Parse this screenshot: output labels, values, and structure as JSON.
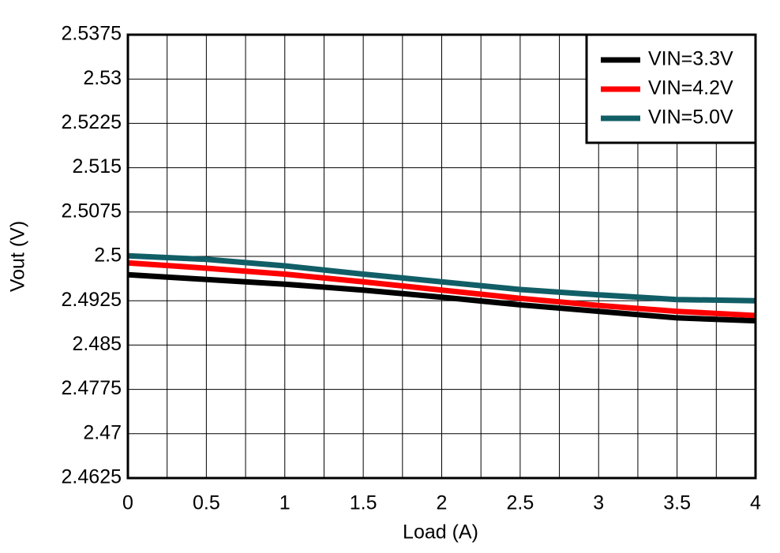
{
  "chart_data": {
    "type": "line",
    "x_label": "Load (A)",
    "y_label": "Vout (V)",
    "x": [
      0,
      0.5,
      1,
      1.5,
      2,
      2.5,
      3,
      3.5,
      4
    ],
    "series": [
      {
        "name": "VIN=3.3V",
        "color": "#000000",
        "values": [
          2.4969,
          2.4961,
          2.4953,
          2.4943,
          2.4931,
          2.4918,
          2.4907,
          2.4896,
          2.4891
        ]
      },
      {
        "name": "VIN=4.2V",
        "color": "#ff0000",
        "values": [
          2.4989,
          2.498,
          2.497,
          2.4957,
          2.4943,
          2.4929,
          2.4917,
          2.4907,
          2.49
        ]
      },
      {
        "name": "VIN=5.0V",
        "color": "#115e67",
        "values": [
          2.5001,
          2.4995,
          2.4984,
          2.497,
          2.4957,
          2.4944,
          2.4935,
          2.4927,
          2.4925
        ]
      }
    ],
    "xlim": [
      0,
      4
    ],
    "xticks": [
      0,
      0.5,
      1,
      1.5,
      2,
      2.5,
      3,
      3.5,
      4
    ],
    "xminorticks": [
      0.25,
      0.75,
      1.25,
      1.75,
      2.25,
      2.75,
      3.25,
      3.75
    ],
    "ylim": [
      2.4625,
      2.5375
    ],
    "yticks": [
      2.4625,
      2.47,
      2.4775,
      2.485,
      2.4925,
      2.5,
      2.5075,
      2.515,
      2.5225,
      2.53,
      2.5375
    ],
    "grid": true,
    "legend": "upper right"
  }
}
